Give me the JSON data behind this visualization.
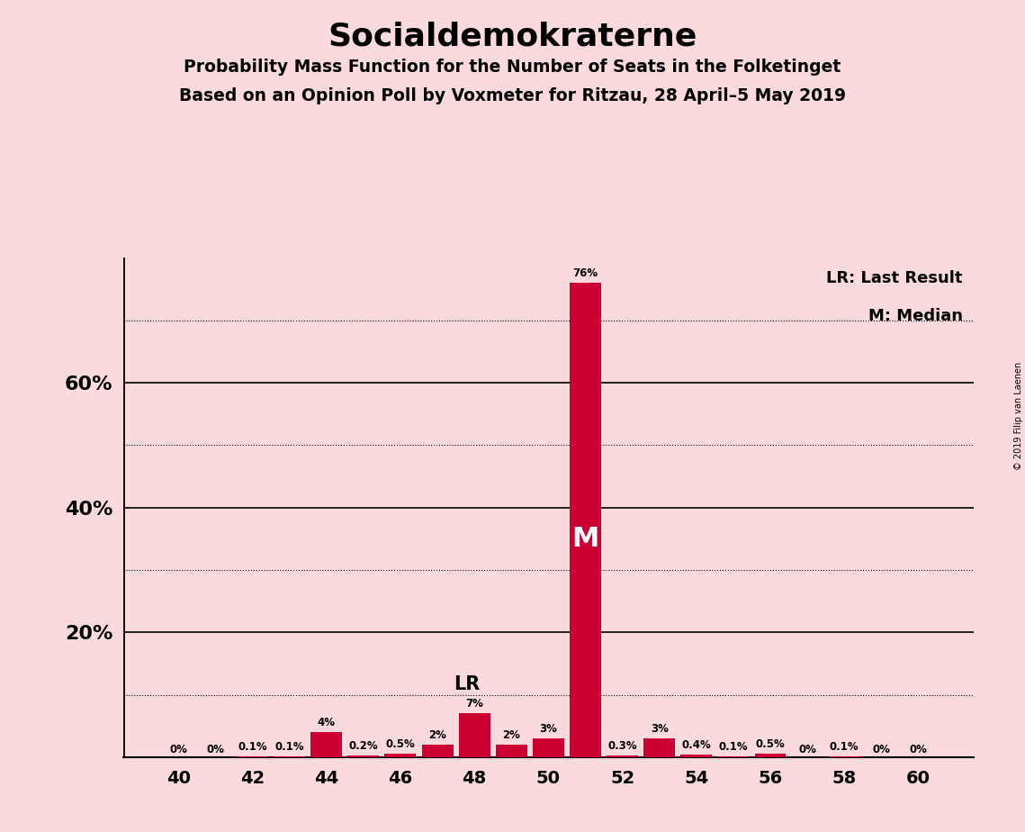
{
  "title": "Socialdemokraterne",
  "subtitle1": "Probability Mass Function for the Number of Seats in the Folketinget",
  "subtitle2": "Based on an Opinion Poll by Voxmeter for Ritzau, 28 April–5 May 2019",
  "copyright": "© 2019 Filip van Laenen",
  "legend_lr": "LR: Last Result",
  "legend_m": "M: Median",
  "seats": [
    40,
    41,
    42,
    43,
    44,
    45,
    46,
    47,
    48,
    49,
    50,
    51,
    52,
    53,
    54,
    55,
    56,
    57,
    58,
    59,
    60
  ],
  "values": [
    0.0,
    0.0,
    0.1,
    0.1,
    4.0,
    0.2,
    0.5,
    2.0,
    7.0,
    2.0,
    3.0,
    76.0,
    0.3,
    3.0,
    0.4,
    0.1,
    0.5,
    0.0,
    0.1,
    0.0,
    0.0
  ],
  "labels": [
    "0%",
    "0%",
    "0.1%",
    "0.1%",
    "4%",
    "0.2%",
    "0.5%",
    "2%",
    "7%",
    "2%",
    "3%",
    "76%",
    "0.3%",
    "3%",
    "0.4%",
    "0.1%",
    "0.5%",
    "0%",
    "0.1%",
    "0%",
    "0%"
  ],
  "lr_seat": 48,
  "median_seat": 51,
  "bar_color": "#CC0033",
  "background_color": "#FADADD",
  "ylim": [
    0,
    80
  ],
  "solid_gridlines": [
    20,
    40,
    60
  ],
  "dotted_gridlines": [
    10,
    30,
    50,
    70
  ],
  "ytick_positions": [
    20,
    40,
    60
  ],
  "ytick_labels": [
    "20%",
    "40%",
    "60%"
  ],
  "xtick_values": [
    40,
    42,
    44,
    46,
    48,
    50,
    52,
    54,
    56,
    58,
    60
  ],
  "xtick_labels": [
    "40",
    "42",
    "44",
    "46",
    "48",
    "50",
    "52",
    "54",
    "56",
    "58",
    "60"
  ]
}
